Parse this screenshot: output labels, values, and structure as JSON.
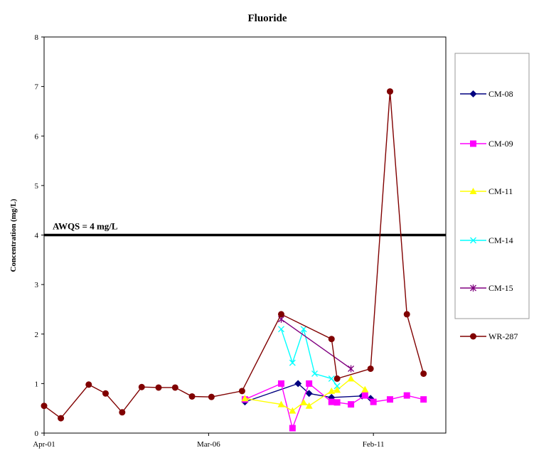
{
  "chart_data": {
    "type": "line",
    "title": "Fluoride",
    "ylabel": "Concentration (mg/L)",
    "xlabel": "",
    "ylim": [
      0,
      8
    ],
    "yticks": [
      0,
      1,
      2,
      3,
      4,
      5,
      6,
      7,
      8
    ],
    "xlim": [
      "2001-04-01",
      "2013-04-01"
    ],
    "xticks": [
      {
        "date": "2001-04-01",
        "label": "Apr-01"
      },
      {
        "date": "2006-03-01",
        "label": "Mar-06"
      },
      {
        "date": "2011-02-01",
        "label": "Feb-11"
      }
    ],
    "grid": false,
    "legend_position": "right",
    "reference_line": {
      "value": 4,
      "label": "AWQS = 4 mg/L",
      "color": "#000000"
    },
    "series": [
      {
        "name": "CM-08",
        "color": "#000080",
        "marker": "diamond",
        "points": [
          {
            "x": "2007-04-01",
            "y": 0.63
          },
          {
            "x": "2008-11-01",
            "y": 1.0
          },
          {
            "x": "2009-03-01",
            "y": 0.8
          },
          {
            "x": "2009-11-01",
            "y": 0.72
          },
          {
            "x": "2010-10-01",
            "y": 0.75
          },
          {
            "x": "2011-01-01",
            "y": 0.7
          }
        ]
      },
      {
        "name": "CM-09",
        "color": "#FF00FF",
        "marker": "square",
        "points": [
          {
            "x": "2007-04-01",
            "y": 0.68
          },
          {
            "x": "2008-05-01",
            "y": 1.0
          },
          {
            "x": "2008-09-01",
            "y": 0.1
          },
          {
            "x": "2009-03-01",
            "y": 1.0
          },
          {
            "x": "2009-11-01",
            "y": 0.63
          },
          {
            "x": "2010-01-01",
            "y": 0.62
          },
          {
            "x": "2010-06-01",
            "y": 0.58
          },
          {
            "x": "2010-11-01",
            "y": 0.76
          },
          {
            "x": "2011-02-01",
            "y": 0.63
          },
          {
            "x": "2011-08-01",
            "y": 0.68
          },
          {
            "x": "2012-02-01",
            "y": 0.76
          },
          {
            "x": "2012-08-01",
            "y": 0.68
          }
        ]
      },
      {
        "name": "CM-11",
        "color": "#FFFF00",
        "marker": "triangle",
        "points": [
          {
            "x": "2007-04-01",
            "y": 0.7
          },
          {
            "x": "2008-05-01",
            "y": 0.58
          },
          {
            "x": "2008-09-01",
            "y": 0.45
          },
          {
            "x": "2009-01-01",
            "y": 0.62
          },
          {
            "x": "2009-03-01",
            "y": 0.55
          },
          {
            "x": "2009-11-01",
            "y": 0.85
          },
          {
            "x": "2010-01-01",
            "y": 0.87
          },
          {
            "x": "2010-06-01",
            "y": 1.1
          },
          {
            "x": "2010-11-01",
            "y": 0.88
          }
        ]
      },
      {
        "name": "CM-14",
        "color": "#00FFFF",
        "marker": "x",
        "points": [
          {
            "x": "2008-05-01",
            "y": 2.1
          },
          {
            "x": "2008-09-01",
            "y": 1.42
          },
          {
            "x": "2009-01-01",
            "y": 2.1
          },
          {
            "x": "2009-05-01",
            "y": 1.2
          },
          {
            "x": "2009-11-01",
            "y": 1.1
          },
          {
            "x": "2010-01-01",
            "y": 0.95
          }
        ]
      },
      {
        "name": "CM-15",
        "color": "#800080",
        "marker": "star",
        "points": [
          {
            "x": "2008-05-01",
            "y": 2.3
          },
          {
            "x": "2010-06-01",
            "y": 1.3
          }
        ]
      },
      {
        "name": "WR-287",
        "color": "#800000",
        "marker": "circle",
        "points": [
          {
            "x": "2001-04-01",
            "y": 0.55
          },
          {
            "x": "2001-10-01",
            "y": 0.3
          },
          {
            "x": "2002-08-01",
            "y": 0.98
          },
          {
            "x": "2003-02-01",
            "y": 0.8
          },
          {
            "x": "2003-08-01",
            "y": 0.42
          },
          {
            "x": "2004-03-01",
            "y": 0.93
          },
          {
            "x": "2004-09-01",
            "y": 0.92
          },
          {
            "x": "2005-03-01",
            "y": 0.92
          },
          {
            "x": "2005-09-01",
            "y": 0.74
          },
          {
            "x": "2006-04-01",
            "y": 0.73
          },
          {
            "x": "2007-03-01",
            "y": 0.85
          },
          {
            "x": "2008-05-01",
            "y": 2.4
          },
          {
            "x": "2009-11-01",
            "y": 1.9
          },
          {
            "x": "2010-01-01",
            "y": 1.1
          },
          {
            "x": "2011-01-01",
            "y": 1.3
          },
          {
            "x": "2011-08-01",
            "y": 6.9
          },
          {
            "x": "2012-02-01",
            "y": 2.4
          },
          {
            "x": "2012-08-01",
            "y": 1.2
          }
        ]
      }
    ]
  }
}
